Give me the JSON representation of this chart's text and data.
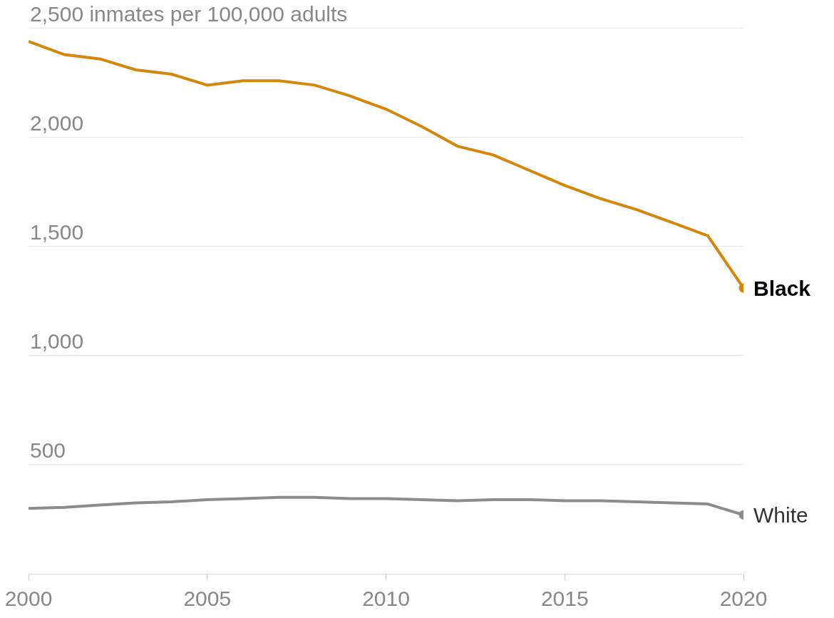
{
  "chart_data": {
    "type": "line",
    "x": [
      2000,
      2001,
      2002,
      2003,
      2004,
      2005,
      2006,
      2007,
      2008,
      2009,
      2010,
      2011,
      2012,
      2013,
      2014,
      2015,
      2016,
      2017,
      2018,
      2019,
      2020
    ],
    "series": [
      {
        "name": "Black",
        "color": "#d4870b",
        "values": [
          2440,
          2380,
          2360,
          2310,
          2290,
          2240,
          2260,
          2260,
          2240,
          2190,
          2130,
          2050,
          1960,
          1920,
          1850,
          1780,
          1720,
          1670,
          1610,
          1550,
          1310
        ]
      },
      {
        "name": "White",
        "color": "#8c8c8c",
        "values": [
          300,
          305,
          315,
          325,
          330,
          340,
          345,
          350,
          350,
          345,
          345,
          340,
          335,
          340,
          340,
          335,
          335,
          330,
          325,
          320,
          270
        ]
      }
    ],
    "xlim": [
      2000,
      2020
    ],
    "xticks": [
      2000,
      2005,
      2010,
      2015,
      2020
    ],
    "ylim": [
      0,
      2630
    ],
    "yticks": [
      {
        "value": 500,
        "label": "500"
      },
      {
        "value": 1000,
        "label": "1,000"
      },
      {
        "value": 1500,
        "label": "1,500"
      },
      {
        "value": 2000,
        "label": "2,000"
      },
      {
        "value": 2500,
        "label": "2,500 inmates per 100,000 adults"
      }
    ],
    "grid": "y",
    "legend": false,
    "line_style": "solid"
  }
}
